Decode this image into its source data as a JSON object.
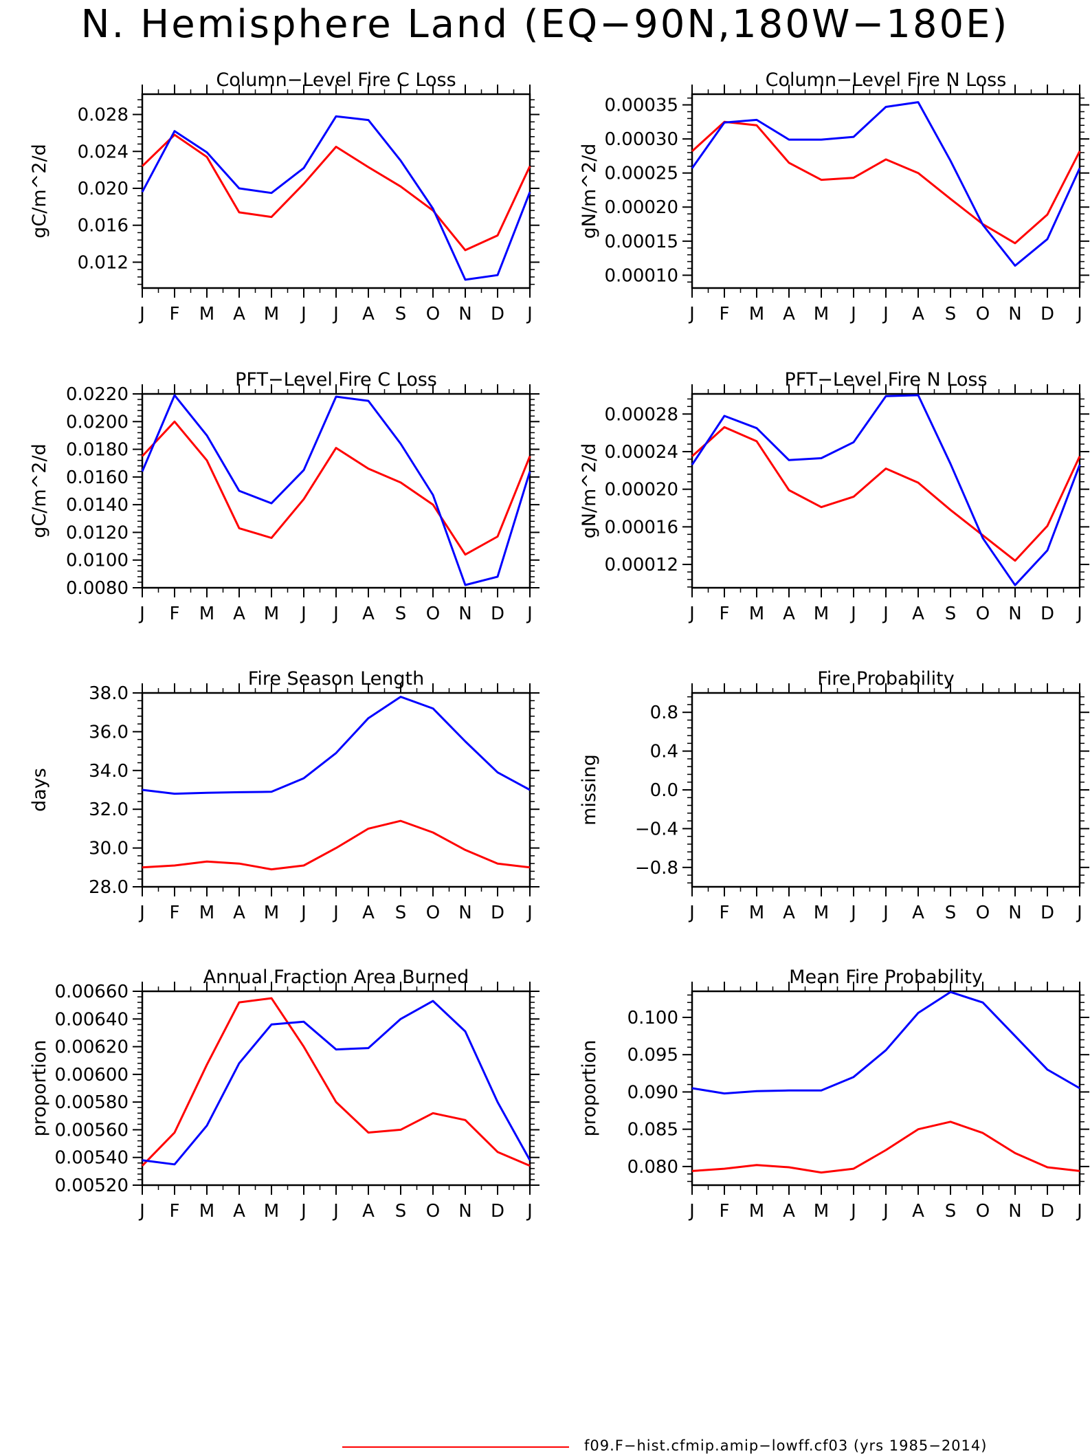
{
  "title": "N. Hemisphere Land (EQ−90N,180W−180E)",
  "legend": {
    "label": "f09.F−hist.cfmip.amip−lowff.cf03 (yrs 1985−2014)",
    "color": "#ff0000"
  },
  "colors": {
    "red": "#ff0000",
    "blue": "#0000ff"
  },
  "chart_data": [
    {
      "type": "line",
      "title": "Column−Level Fire C Loss",
      "ylabel": "gC/m^2/d",
      "categories": [
        "J",
        "F",
        "M",
        "A",
        "M",
        "J",
        "J",
        "A",
        "S",
        "O",
        "N",
        "D",
        "J"
      ],
      "ylim": [
        0.0092,
        0.0302
      ],
      "yticks": [
        0.012,
        0.016,
        0.02,
        0.024,
        0.028
      ],
      "ytick_labels": [
        "0.012",
        "0.016",
        "0.020",
        "0.024",
        "0.028"
      ],
      "series": [
        {
          "color": "#ff0000",
          "values": [
            0.0224,
            0.0258,
            0.0234,
            0.0174,
            0.0169,
            0.0205,
            0.0245,
            0.0223,
            0.0202,
            0.0176,
            0.0133,
            0.0149,
            0.0224
          ]
        },
        {
          "color": "#0000ff",
          "values": [
            0.0196,
            0.0262,
            0.0239,
            0.02,
            0.0195,
            0.0222,
            0.0278,
            0.0274,
            0.023,
            0.0178,
            0.0101,
            0.0106,
            0.0196
          ]
        }
      ]
    },
    {
      "type": "line",
      "title": "Column−Level Fire N Loss",
      "ylabel": "gN/m^2/d",
      "categories": [
        "J",
        "F",
        "M",
        "A",
        "M",
        "J",
        "J",
        "A",
        "S",
        "O",
        "N",
        "D",
        "J"
      ],
      "ylim": [
        8.12e-05,
        0.0003657
      ],
      "yticks": [
        0.0001,
        0.00015,
        0.0002,
        0.00025,
        0.0003,
        0.00035
      ],
      "ytick_labels": [
        "0.00010",
        "0.00015",
        "0.00020",
        "0.00025",
        "0.00030",
        "0.00035"
      ],
      "series": [
        {
          "color": "#ff0000",
          "values": [
            0.000282,
            0.000325,
            0.00032,
            0.000265,
            0.00024,
            0.000243,
            0.00027,
            0.00025,
            0.000212,
            0.000175,
            0.000147,
            0.000189,
            0.000282
          ]
        },
        {
          "color": "#0000ff",
          "values": [
            0.000257,
            0.000324,
            0.000328,
            0.000299,
            0.000299,
            0.000303,
            0.000347,
            0.000354,
            0.000268,
            0.000174,
            0.000114,
            0.000153,
            0.000257
          ]
        }
      ]
    },
    {
      "type": "line",
      "title": "PFT−Level Fire C Loss",
      "ylabel": "gC/m^2/d",
      "categories": [
        "J",
        "F",
        "M",
        "A",
        "M",
        "J",
        "J",
        "A",
        "S",
        "O",
        "N",
        "D",
        "J"
      ],
      "ylim": [
        0.008,
        0.022
      ],
      "yticks": [
        0.008,
        0.01,
        0.012,
        0.014,
        0.016,
        0.018,
        0.02,
        0.022
      ],
      "ytick_labels": [
        "0.0080",
        "0.0100",
        "0.0120",
        "0.0140",
        "0.0160",
        "0.0180",
        "0.0200",
        "0.0220"
      ],
      "series": [
        {
          "color": "#ff0000",
          "values": [
            0.0175,
            0.02,
            0.0172,
            0.0123,
            0.0116,
            0.0144,
            0.0181,
            0.0166,
            0.0156,
            0.014,
            0.0104,
            0.0117,
            0.0175
          ]
        },
        {
          "color": "#0000ff",
          "values": [
            0.0164,
            0.0219,
            0.019,
            0.015,
            0.0141,
            0.0165,
            0.0218,
            0.0215,
            0.0184,
            0.0147,
            0.0082,
            0.0088,
            0.0164
          ]
        }
      ]
    },
    {
      "type": "line",
      "title": "PFT−Level Fire N Loss",
      "ylabel": "gN/m^2/d",
      "categories": [
        "J",
        "F",
        "M",
        "A",
        "M",
        "J",
        "J",
        "A",
        "S",
        "O",
        "N",
        "D",
        "J"
      ],
      "ylim": [
        9.52e-05,
        0.0003014
      ],
      "yticks": [
        0.00012,
        0.00016,
        0.0002,
        0.00024,
        0.00028
      ],
      "ytick_labels": [
        "0.00012",
        "0.00016",
        "0.00020",
        "0.00024",
        "0.00028"
      ],
      "series": [
        {
          "color": "#ff0000",
          "values": [
            0.000235,
            0.000266,
            0.000251,
            0.000199,
            0.000181,
            0.000192,
            0.000222,
            0.000207,
            0.000178,
            0.000151,
            0.000124,
            0.000161,
            0.000235
          ]
        },
        {
          "color": "#0000ff",
          "values": [
            0.000226,
            0.000278,
            0.000265,
            0.000231,
            0.000233,
            0.00025,
            0.000299,
            0.0003,
            0.000227,
            0.000148,
            9.8e-05,
            0.000135,
            0.000226
          ]
        }
      ]
    },
    {
      "type": "line",
      "title": "Fire Season Length",
      "ylabel": "days",
      "categories": [
        "J",
        "F",
        "M",
        "A",
        "M",
        "J",
        "J",
        "A",
        "S",
        "O",
        "N",
        "D",
        "J"
      ],
      "ylim": [
        28.0,
        38.0
      ],
      "yticks": [
        28,
        30,
        32,
        34,
        36,
        38
      ],
      "ytick_labels": [
        "28.0",
        "30.0",
        "32.0",
        "34.0",
        "36.0",
        "38.0"
      ],
      "series": [
        {
          "color": "#ff0000",
          "values": [
            29.0,
            29.1,
            29.3,
            29.2,
            28.9,
            29.1,
            30.0,
            31.0,
            31.4,
            30.8,
            29.9,
            29.2,
            29.0
          ]
        },
        {
          "color": "#0000ff",
          "values": [
            33.0,
            32.8,
            32.85,
            32.88,
            32.9,
            33.6,
            34.9,
            36.7,
            37.8,
            37.2,
            35.5,
            33.9,
            33.0
          ]
        }
      ]
    },
    {
      "type": "line",
      "title": "Fire Probability",
      "ylabel": "missing",
      "categories": [
        "J",
        "F",
        "M",
        "A",
        "M",
        "J",
        "J",
        "A",
        "S",
        "O",
        "N",
        "D",
        "J"
      ],
      "ylim": [
        -1.0,
        1.0
      ],
      "yticks": [
        -0.8,
        -0.4,
        0.0,
        0.4,
        0.8
      ],
      "ytick_labels": [
        "−0.8",
        "−0.4",
        "0.0",
        "0.4",
        "0.8"
      ],
      "series": []
    },
    {
      "type": "line",
      "title": "Annual Fraction Area Burned",
      "ylabel": "proportion",
      "categories": [
        "J",
        "F",
        "M",
        "A",
        "M",
        "J",
        "J",
        "A",
        "S",
        "O",
        "N",
        "D",
        "J"
      ],
      "ylim": [
        0.0052,
        0.0066
      ],
      "yticks": [
        0.0052,
        0.0054,
        0.0056,
        0.0058,
        0.006,
        0.0062,
        0.0064,
        0.0066
      ],
      "ytick_labels": [
        "0.00520",
        "0.00540",
        "0.00560",
        "0.00580",
        "0.00600",
        "0.00620",
        "0.00640",
        "0.00660"
      ],
      "series": [
        {
          "color": "#ff0000",
          "values": [
            0.00534,
            0.00558,
            0.00607,
            0.00652,
            0.00655,
            0.0062,
            0.0058,
            0.00558,
            0.0056,
            0.00572,
            0.00567,
            0.00544,
            0.00534
          ]
        },
        {
          "color": "#0000ff",
          "values": [
            0.00538,
            0.00535,
            0.00563,
            0.00608,
            0.00636,
            0.00638,
            0.00618,
            0.00619,
            0.0064,
            0.00653,
            0.00631,
            0.0058,
            0.00538
          ]
        }
      ]
    },
    {
      "type": "line",
      "title": "Mean Fire Probability",
      "ylabel": "proportion",
      "categories": [
        "J",
        "F",
        "M",
        "A",
        "M",
        "J",
        "J",
        "A",
        "S",
        "O",
        "N",
        "D",
        "J"
      ],
      "ylim": [
        0.0775,
        0.1035
      ],
      "yticks": [
        0.08,
        0.085,
        0.09,
        0.095,
        0.1
      ],
      "ytick_labels": [
        "0.080",
        "0.085",
        "0.090",
        "0.095",
        "0.100"
      ],
      "series": [
        {
          "color": "#ff0000",
          "values": [
            0.0794,
            0.0797,
            0.0802,
            0.0799,
            0.0792,
            0.0797,
            0.0822,
            0.085,
            0.086,
            0.0845,
            0.0818,
            0.0799,
            0.0794
          ]
        },
        {
          "color": "#0000ff",
          "values": [
            0.0905,
            0.0898,
            0.0901,
            0.0902,
            0.0902,
            0.092,
            0.0956,
            0.1006,
            0.1034,
            0.102,
            0.0975,
            0.093,
            0.0905
          ]
        }
      ]
    }
  ]
}
